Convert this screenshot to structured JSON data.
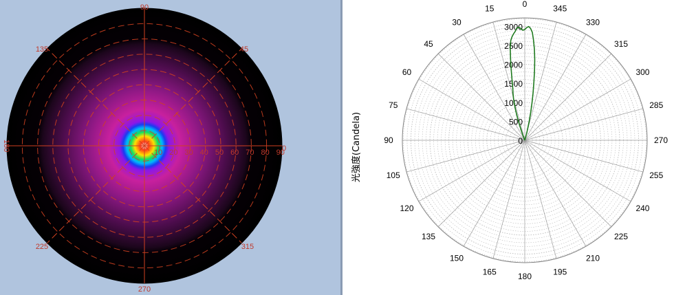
{
  "colors": {
    "panel_bg": "#b0c4de",
    "grid_heatmap": "#d04020",
    "label_heatmap": "#c0392b",
    "curve": "#1f7a1f",
    "grid_polar": "#b8b8b8"
  },
  "chart_data": [
    {
      "type": "heatmap",
      "angle_labels": [
        "90",
        "45",
        "0",
        "315",
        "270",
        "225",
        "180",
        "135"
      ],
      "radial_labels": [
        "10",
        "20",
        "30",
        "40",
        "50",
        "60",
        "70",
        "80",
        "90"
      ],
      "grid": true
    },
    {
      "type": "line",
      "projection": "polar",
      "ylabel": "光強度(Candela)",
      "angle_labels": [
        "0",
        "15",
        "30",
        "45",
        "60",
        "75",
        "90",
        "105",
        "120",
        "135",
        "150",
        "165",
        "180",
        "195",
        "210",
        "225",
        "240",
        "255",
        "270",
        "285",
        "300",
        "315",
        "330",
        "345"
      ],
      "radial_ticks": [
        "0",
        "500",
        "1000",
        "1500",
        "2000",
        "2500",
        "3000"
      ],
      "rlim": [
        0,
        3000
      ],
      "grid": true,
      "series": [
        {
          "angle": [
            -16,
            -15,
            -14,
            -13,
            -12,
            -11,
            -10,
            -9,
            -8,
            -7,
            -6,
            -5,
            -4,
            -3,
            -2,
            -1,
            0,
            1,
            2,
            3,
            4,
            5,
            6,
            7,
            8,
            9,
            10,
            11,
            12,
            13,
            14,
            15,
            16,
            17,
            18,
            19,
            20,
            21
          ],
          "r": [
            0,
            200,
            320,
            520,
            770,
            1000,
            1250,
            1530,
            1850,
            2150,
            2420,
            2650,
            2850,
            2950,
            3000,
            2970,
            2920,
            2900,
            2950,
            2980,
            2970,
            2880,
            2820,
            2750,
            2650,
            2450,
            2150,
            1850,
            1600,
            1400,
            1280,
            1150,
            1000,
            820,
            610,
            420,
            200,
            0
          ]
        }
      ]
    }
  ]
}
